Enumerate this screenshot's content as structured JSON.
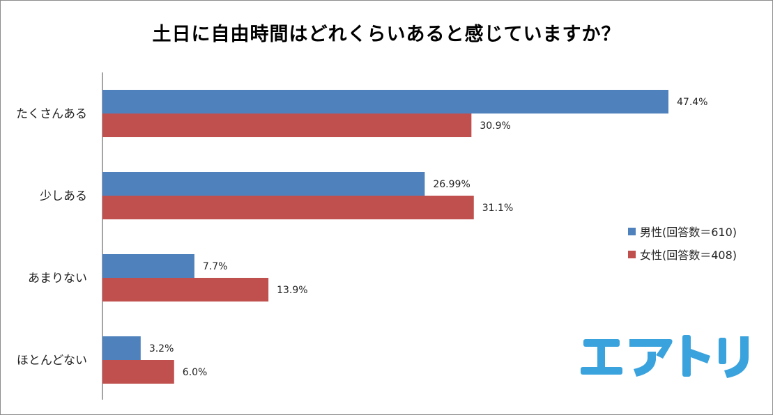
{
  "chart_data": {
    "type": "bar",
    "orientation": "horizontal",
    "title": "土日に自由時間はどれくらいあると感じていますか？",
    "categories": [
      "たくさんある",
      "少しある",
      "あまりない",
      "ほとんどない"
    ],
    "series": [
      {
        "name": "男性(回答数＝610)",
        "color": "#4f81bd",
        "values": [
          47.4,
          26.99,
          7.7,
          3.2
        ],
        "labels": [
          "47.4%",
          "26.99%",
          "7.7%",
          "3.2%"
        ]
      },
      {
        "name": "女性(回答数＝408)",
        "color": "#c0504d",
        "values": [
          30.9,
          31.1,
          13.9,
          6.0
        ],
        "labels": [
          "30.9%",
          "31.1%",
          "13.9%",
          "6.0%"
        ]
      }
    ],
    "xlim": [
      0,
      50
    ],
    "grid": false,
    "legend_position": "right"
  },
  "logo": {
    "text": "エアトリ",
    "color": "#3aa3dd"
  }
}
